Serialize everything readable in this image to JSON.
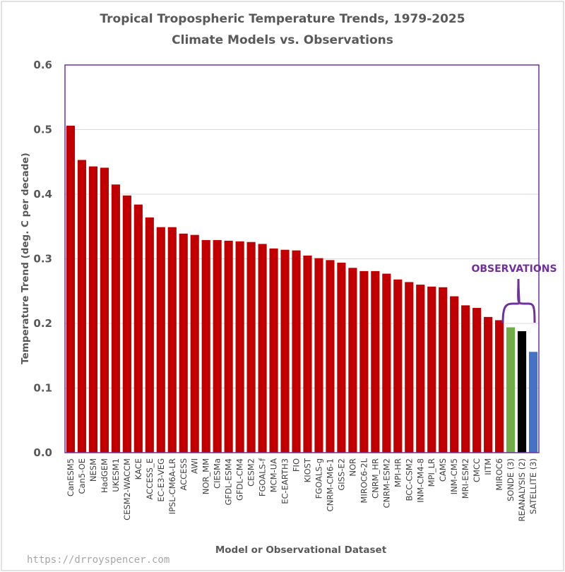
{
  "chart_data": {
    "type": "bar",
    "title": "Tropical Tropospheric Temperature Trends, 1979-2025",
    "subtitle": "Climate Models vs. Observations",
    "xlabel": "Model or Observational Dataset",
    "ylabel": "Temperature Trend (deg. C per decade)",
    "ylim": [
      0,
      0.6
    ],
    "yticks": [
      "0.0",
      "0.1",
      "0.2",
      "0.3",
      "0.4",
      "0.5",
      "0.6"
    ],
    "grid": true,
    "categories": [
      "CanESM5",
      "Can5-OE",
      "NESM",
      "HadGEM",
      "UKESM1",
      "CESM2-WACCM",
      "KACE",
      "ACCESS_E",
      "EC-E3-VEG",
      "IPSL-CM6A-LR",
      "ACCESS",
      "AWI",
      "NOR_MM",
      "CIESMa",
      "GFDL-ESM4",
      "GFDL-CM4",
      "CESM2",
      "FGOALS-f",
      "MCM-UA",
      "EC-EARTH3",
      "FIO",
      "KIOST",
      "FGOALS-g",
      "CNRM-CM6-1",
      "GISS-E2",
      "NOR",
      "MIROC6-2L",
      "CNRM_HR",
      "CNRM-ESM2",
      "MPI-HR",
      "BCC-CSM2",
      "INM-CM4-8",
      "MPI_LR",
      "CAMS",
      "INM-CM5",
      "MRI-ESM2",
      "CMCC",
      "IITM",
      "MIROC6",
      "SONDE (3)",
      "REANALYSIS (2)",
      "SATELLITE (3)"
    ],
    "values": [
      0.506,
      0.453,
      0.443,
      0.441,
      0.415,
      0.398,
      0.384,
      0.364,
      0.349,
      0.349,
      0.339,
      0.337,
      0.329,
      0.329,
      0.328,
      0.327,
      0.326,
      0.323,
      0.316,
      0.314,
      0.313,
      0.305,
      0.301,
      0.298,
      0.294,
      0.286,
      0.281,
      0.281,
      0.277,
      0.268,
      0.264,
      0.26,
      0.257,
      0.256,
      0.242,
      0.228,
      0.224,
      0.21,
      0.205,
      0.194,
      0.188,
      0.156
    ],
    "colors": {
      "model": "#c00000",
      "SONDE (3)": "#70ad47",
      "REANALYSIS (2)": "#000000",
      "SATELLITE (3)": "#4472c4",
      "frame": "#7030a0",
      "grid": "#d9d9d9"
    },
    "annotation": "OBSERVATIONS"
  },
  "watermark": "https://drroyspencer.com"
}
